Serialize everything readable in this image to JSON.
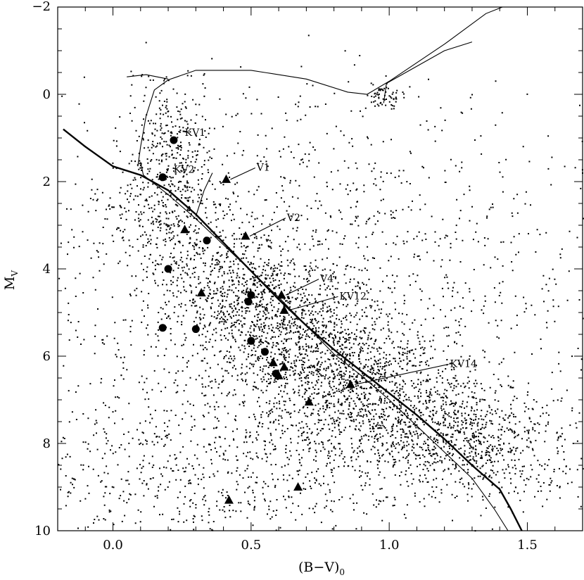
{
  "chart_data": {
    "type": "scatter",
    "title": "",
    "xlabel": "(B−V)",
    "xlabel_subscript": "0",
    "ylabel": "M",
    "ylabel_subscript": "V",
    "xlim": [
      -0.2,
      1.7
    ],
    "ylim": [
      10,
      -2
    ],
    "y_inverted": true,
    "grid": false,
    "legend": "none",
    "x_ticks": [
      {
        "value": 0.0,
        "label": "0.0"
      },
      {
        "value": 0.5,
        "label": "0.5"
      },
      {
        "value": 1.0,
        "label": "1.0"
      },
      {
        "value": 1.5,
        "label": "1.5"
      }
    ],
    "y_ticks": [
      {
        "value": -2,
        "label": "−2"
      },
      {
        "value": 0,
        "label": "0"
      },
      {
        "value": 2,
        "label": "2"
      },
      {
        "value": 4,
        "label": "4"
      },
      {
        "value": 6,
        "label": "6"
      },
      {
        "value": 8,
        "label": "8"
      },
      {
        "value": 10,
        "label": "10"
      }
    ],
    "curves": [
      {
        "style": "thick",
        "points": [
          [
            -0.18,
            0.8
          ],
          [
            -0.1,
            1.2
          ],
          [
            0.0,
            1.65
          ],
          [
            0.1,
            1.85
          ],
          [
            0.2,
            2.2
          ],
          [
            0.3,
            2.75
          ],
          [
            0.4,
            3.4
          ],
          [
            0.5,
            4.05
          ],
          [
            0.6,
            4.7
          ],
          [
            0.7,
            5.3
          ],
          [
            0.8,
            5.85
          ],
          [
            0.9,
            6.35
          ],
          [
            1.0,
            6.85
          ],
          [
            1.1,
            7.35
          ],
          [
            1.2,
            7.9
          ],
          [
            1.3,
            8.5
          ],
          [
            1.4,
            9.05
          ],
          [
            1.44,
            9.5
          ],
          [
            1.48,
            10.0
          ]
        ]
      },
      {
        "style": "thin",
        "points": [
          [
            0.09,
            1.65
          ],
          [
            0.1,
            1.2
          ],
          [
            0.12,
            0.5
          ],
          [
            0.15,
            -0.1
          ],
          [
            0.2,
            -0.33
          ],
          [
            0.3,
            -0.55
          ],
          [
            0.5,
            -0.55
          ],
          [
            0.7,
            -0.35
          ],
          [
            0.85,
            -0.05
          ],
          [
            0.92,
            0.0
          ],
          [
            1.0,
            -0.3
          ],
          [
            1.2,
            -1.15
          ],
          [
            1.35,
            -1.85
          ],
          [
            1.41,
            -2.0
          ]
        ]
      },
      {
        "style": "thin",
        "points": [
          [
            0.2,
            -0.35
          ],
          [
            0.12,
            -0.45
          ],
          [
            0.05,
            -0.4
          ]
        ]
      },
      {
        "style": "thin",
        "points": [
          [
            0.1,
            1.55
          ],
          [
            0.11,
            1.85
          ],
          [
            0.14,
            2.0
          ],
          [
            0.2,
            2.3
          ],
          [
            0.3,
            2.85
          ],
          [
            0.4,
            3.45
          ],
          [
            0.5,
            4.05
          ],
          [
            0.6,
            4.65
          ],
          [
            0.7,
            5.3
          ],
          [
            0.8,
            5.95
          ],
          [
            0.9,
            6.45
          ],
          [
            1.0,
            7.0
          ],
          [
            1.1,
            7.6
          ],
          [
            1.2,
            8.2
          ],
          [
            1.3,
            8.8
          ],
          [
            1.38,
            9.5
          ],
          [
            1.43,
            10.0
          ]
        ]
      },
      {
        "style": "thin",
        "points": [
          [
            0.98,
            0.2
          ],
          [
            0.99,
            -0.25
          ],
          [
            1.2,
            -1.0
          ],
          [
            1.3,
            -1.2
          ]
        ]
      },
      {
        "style": "thin",
        "points": [
          [
            0.3,
            2.8
          ],
          [
            0.33,
            2.2
          ],
          [
            0.36,
            1.8
          ]
        ]
      }
    ],
    "field_stars": {
      "seed": 7,
      "regions": [
        {
          "count": 1700,
          "center": [
            0.6,
            5.4
          ],
          "spread": [
            0.18,
            1.3
          ],
          "follow_sequence": true
        },
        {
          "count": 900,
          "center": [
            0.85,
            7.2
          ],
          "spread": [
            0.3,
            0.9
          ],
          "follow_sequence": true
        },
        {
          "count": 450,
          "center": [
            0.2,
            1.8
          ],
          "spread": [
            0.08,
            1.0
          ],
          "follow_sequence": false
        },
        {
          "count": 1100,
          "center": [
            0.75,
            6.5
          ],
          "spread": [
            0.45,
            1.9
          ],
          "follow_sequence": false
        },
        {
          "count": 500,
          "center": [
            0.3,
            8.8
          ],
          "spread": [
            0.35,
            0.8
          ],
          "follow_sequence": false
        },
        {
          "count": 600,
          "center": [
            0.75,
            3.8
          ],
          "spread": [
            0.55,
            1.5
          ],
          "follow_sequence": false
        },
        {
          "count": 420,
          "center": [
            1.3,
            8.1
          ],
          "spread": [
            0.2,
            0.6
          ],
          "follow_sequence": false
        },
        {
          "count": 260,
          "center": [
            0.6,
            1.5
          ],
          "spread": [
            0.45,
            1.2
          ],
          "follow_sequence": false
        },
        {
          "count": 60,
          "center": [
            0.98,
            0.0
          ],
          "spread": [
            0.03,
            0.15
          ],
          "follow_sequence": false
        }
      ]
    },
    "circles": [
      [
        0.22,
        1.05
      ],
      [
        0.18,
        1.9
      ],
      [
        0.34,
        3.35
      ],
      [
        0.2,
        4.0
      ],
      [
        0.18,
        5.35
      ],
      [
        0.3,
        5.38
      ],
      [
        0.5,
        4.6
      ],
      [
        0.49,
        4.75
      ],
      [
        0.5,
        5.65
      ],
      [
        0.55,
        5.9
      ],
      [
        0.59,
        6.4
      ]
    ],
    "triangles": [
      [
        0.41,
        1.95
      ],
      [
        0.26,
        3.1
      ],
      [
        0.48,
        3.25
      ],
      [
        0.32,
        4.55
      ],
      [
        0.61,
        4.6
      ],
      [
        0.62,
        4.95
      ],
      [
        0.58,
        6.15
      ],
      [
        0.62,
        6.25
      ],
      [
        0.6,
        6.45
      ],
      [
        0.71,
        7.05
      ],
      [
        0.67,
        9.0
      ],
      [
        0.42,
        9.3
      ],
      [
        0.86,
        6.65
      ]
    ],
    "annotations": [
      {
        "label": "KV1",
        "point": [
          0.22,
          1.05
        ],
        "text_at": [
          0.26,
          0.95
        ],
        "leader": false
      },
      {
        "label": "KV2",
        "point": [
          0.18,
          1.9
        ],
        "text_at": [
          0.22,
          1.8
        ],
        "leader": false
      },
      {
        "label": "V1",
        "point": [
          0.41,
          1.95
        ],
        "text_at": [
          0.52,
          1.75
        ],
        "leader": true
      },
      {
        "label": "V2",
        "point": [
          0.48,
          3.25
        ],
        "text_at": [
          0.63,
          2.9
        ],
        "leader": true
      },
      {
        "label": "V4",
        "point": [
          0.61,
          4.6
        ],
        "text_at": [
          0.75,
          4.3
        ],
        "leader": true
      },
      {
        "label": "KV12",
        "point": [
          0.62,
          4.95
        ],
        "text_at": [
          0.82,
          4.7
        ],
        "leader": true
      },
      {
        "label": "KV14",
        "point": [
          0.86,
          6.65
        ],
        "text_at": [
          1.22,
          6.25
        ],
        "leader": true
      }
    ]
  }
}
